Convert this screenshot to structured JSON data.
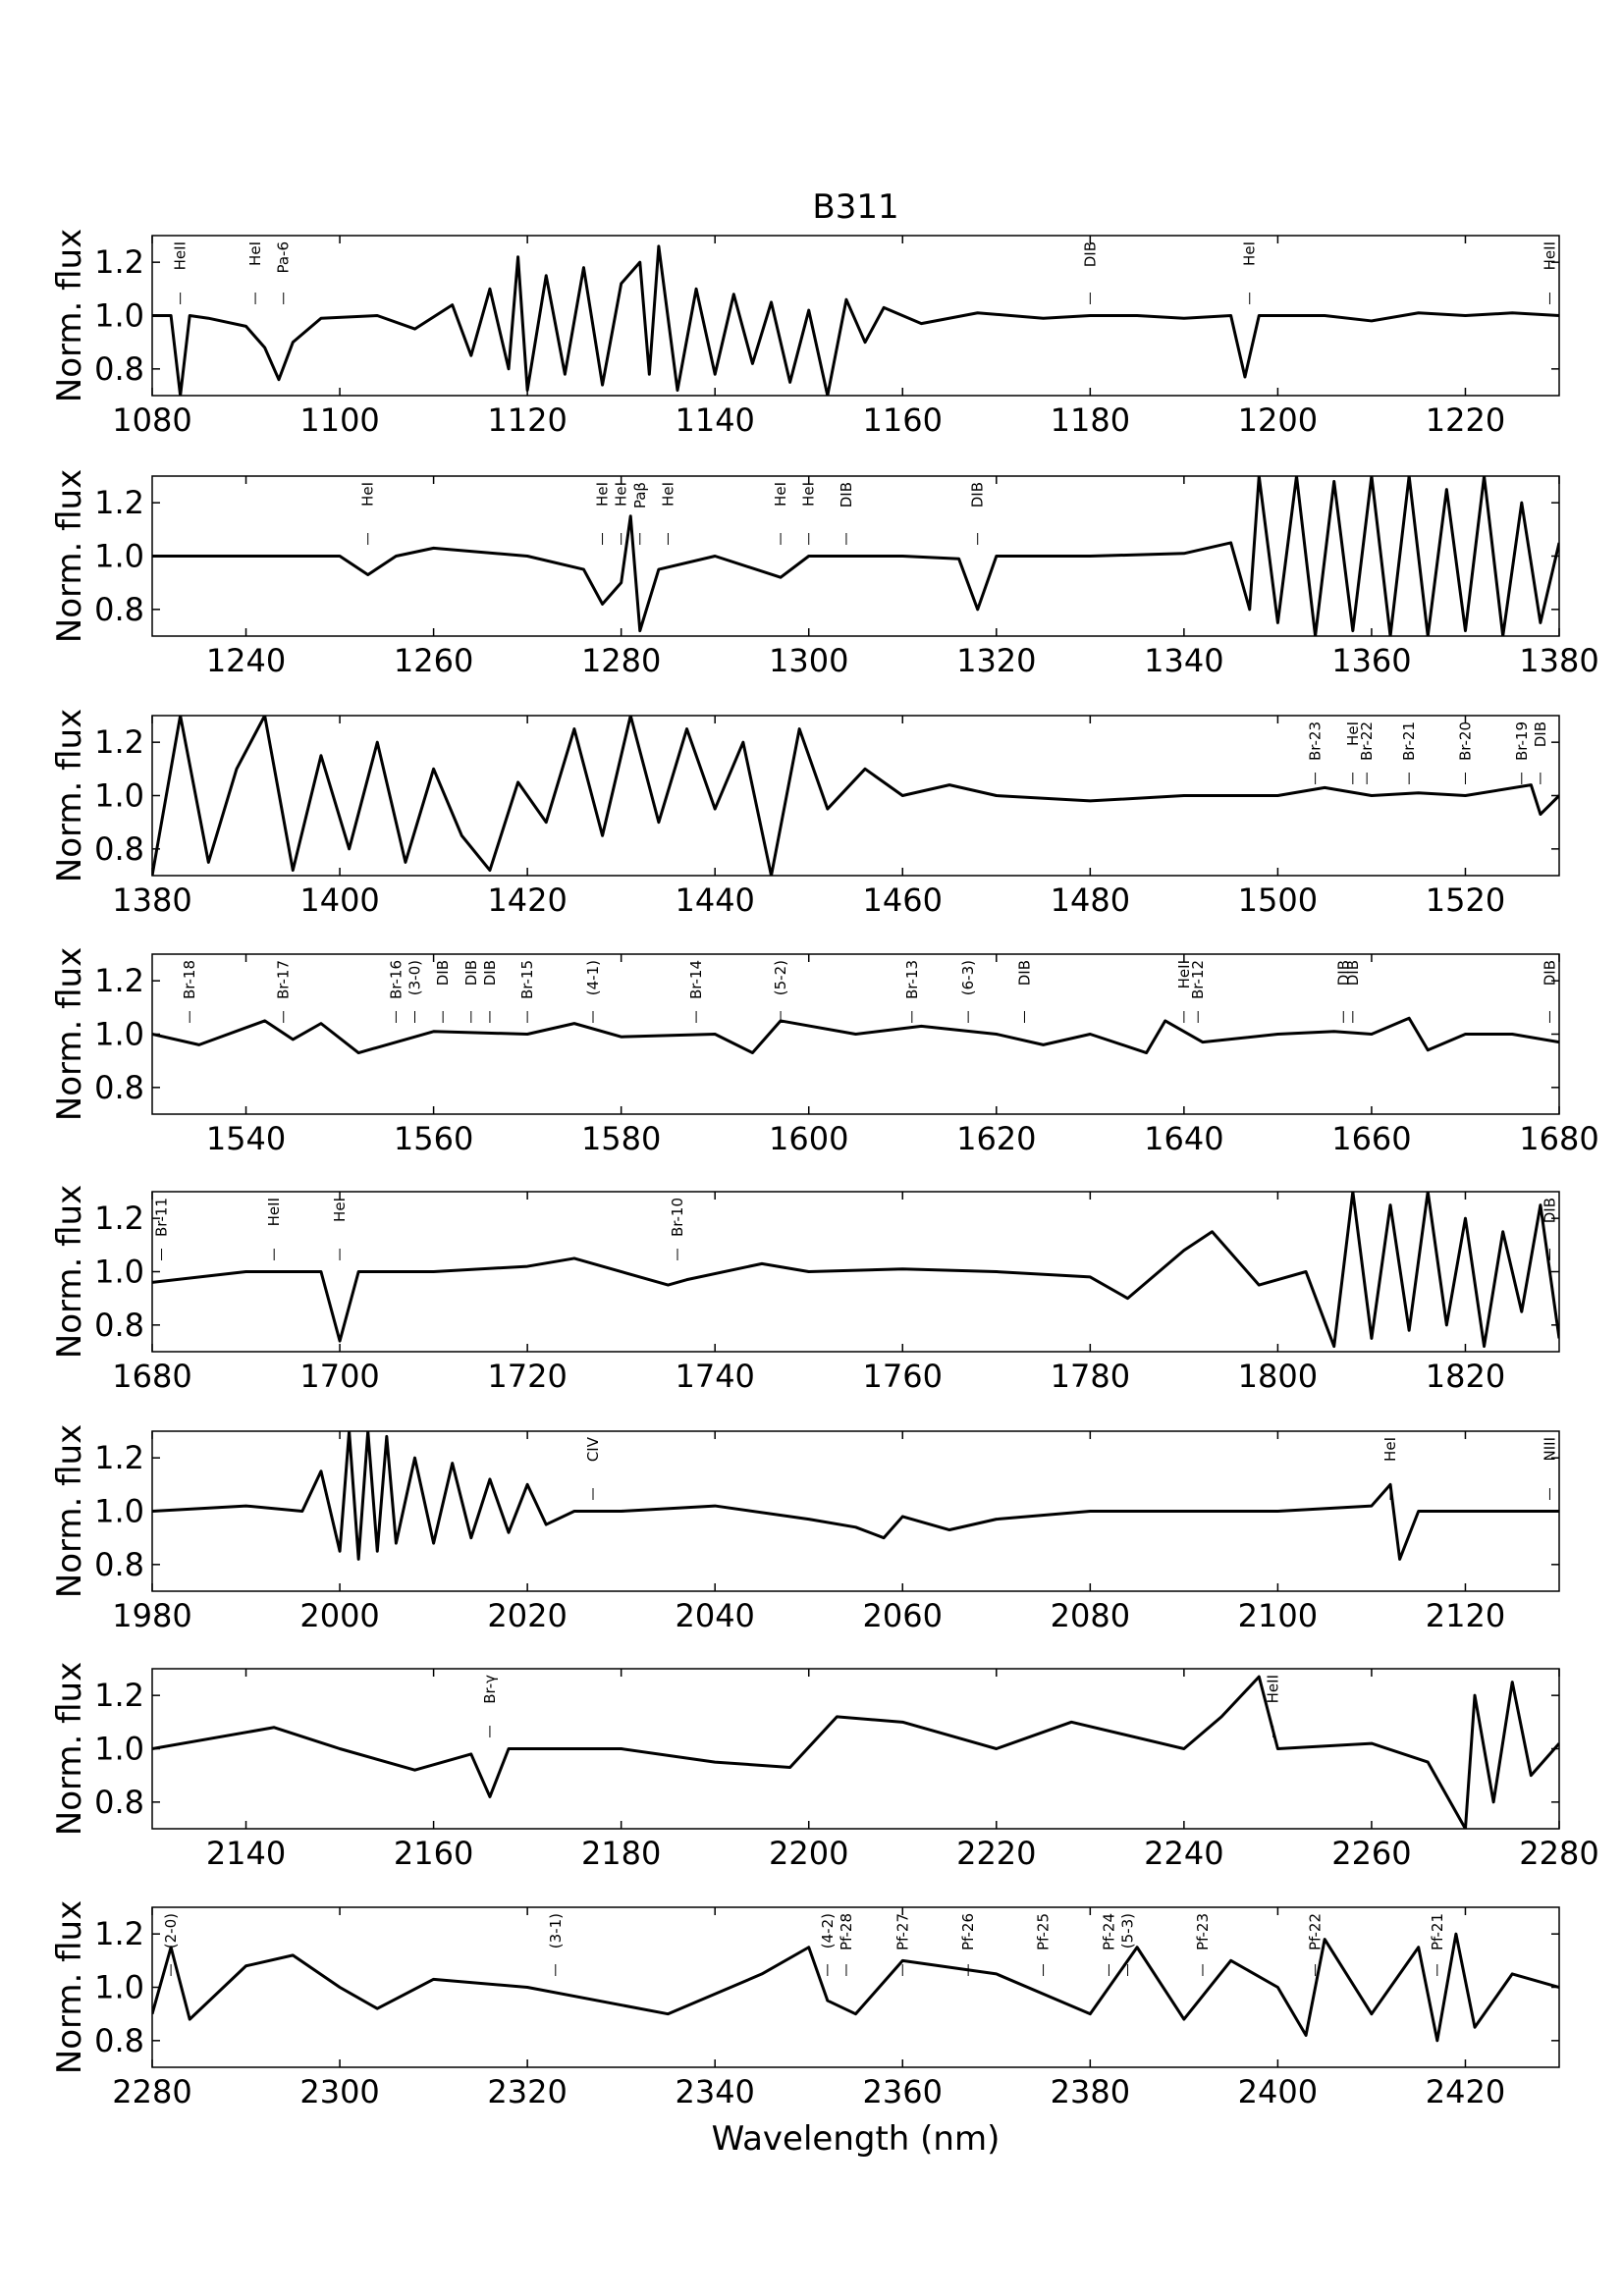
{
  "chart_data": [
    {
      "type": "line",
      "title": "B311",
      "ylabel": "Norm. flux",
      "color": "#000000",
      "xlim": [
        1080,
        1230
      ],
      "xticks": [
        1080,
        1100,
        1120,
        1140,
        1160,
        1180,
        1200,
        1220
      ],
      "ylim": [
        0.7,
        1.3
      ],
      "yticks": [
        0.8,
        {
          "value": 1,
          "label": "1.0"
        },
        1.2
      ],
      "x": [
        1080,
        1082,
        1083,
        1084,
        1086,
        1090,
        1092,
        1093.5,
        1095,
        1098,
        1104,
        1108,
        1112,
        1114,
        1116,
        1118,
        1119,
        1120,
        1122,
        1124,
        1126,
        1128,
        1130,
        1132,
        1133,
        1134,
        1136,
        1138,
        1140,
        1142,
        1144,
        1146,
        1148,
        1150,
        1152,
        1154,
        1156,
        1158,
        1162,
        1168,
        1175,
        1180,
        1185,
        1190,
        1195,
        1196.5,
        1198,
        1205,
        1210,
        1215,
        1220,
        1225,
        1230
      ],
      "values": [
        1.0,
        1.0,
        0.7,
        1.0,
        0.99,
        0.96,
        0.88,
        0.76,
        0.9,
        0.99,
        1.0,
        0.95,
        1.04,
        0.85,
        1.1,
        0.8,
        1.22,
        0.72,
        1.15,
        0.78,
        1.18,
        0.74,
        1.12,
        1.2,
        0.78,
        1.26,
        0.72,
        1.1,
        0.78,
        1.08,
        0.82,
        1.05,
        0.75,
        1.02,
        0.7,
        1.06,
        0.9,
        1.03,
        0.97,
        1.01,
        0.99,
        1.0,
        1.0,
        0.99,
        1.0,
        0.77,
        1.0,
        1.0,
        0.98,
        1.01,
        1.0,
        1.01,
        1.0
      ],
      "annotations": [
        {
          "x": 1083,
          "label": "HeII"
        },
        {
          "x": 1091,
          "label": "HeI"
        },
        {
          "x": 1094,
          "label": "Pa-6"
        },
        {
          "x": 1180,
          "label": "DIB"
        },
        {
          "x": 1197,
          "label": "HeI"
        },
        {
          "x": 1229,
          "label": "HeII"
        }
      ]
    },
    {
      "type": "line",
      "ylabel": "Norm. flux",
      "color": "#000000",
      "xlim": [
        1230,
        1380
      ],
      "xticks": [
        1240,
        1260,
        1280,
        1300,
        1320,
        1340,
        1360,
        1380
      ],
      "ylim": [
        0.7,
        1.3
      ],
      "yticks": [
        0.8,
        {
          "value": 1,
          "label": "1.0"
        },
        1.2
      ],
      "x": [
        1230,
        1240,
        1250,
        1253,
        1256,
        1260,
        1270,
        1276,
        1278,
        1280,
        1281,
        1282,
        1284,
        1290,
        1297,
        1300,
        1310,
        1316,
        1318,
        1320,
        1330,
        1340,
        1345,
        1347,
        1348,
        1350,
        1352,
        1354,
        1356,
        1358,
        1360,
        1362,
        1364,
        1366,
        1368,
        1370,
        1372,
        1374,
        1376,
        1378,
        1380
      ],
      "values": [
        1.0,
        1.0,
        1.0,
        0.93,
        1.0,
        1.03,
        1.0,
        0.95,
        0.82,
        0.9,
        1.15,
        0.72,
        0.95,
        1.0,
        0.92,
        1.0,
        1.0,
        0.99,
        0.8,
        1.0,
        1.0,
        1.01,
        1.05,
        0.8,
        1.3,
        0.75,
        1.3,
        0.7,
        1.28,
        0.72,
        1.3,
        0.7,
        1.3,
        0.7,
        1.25,
        0.72,
        1.3,
        0.7,
        1.2,
        0.75,
        1.05
      ],
      "annotations": [
        {
          "x": 1253,
          "label": "HeI"
        },
        {
          "x": 1278,
          "label": "HeI"
        },
        {
          "x": 1280,
          "label": "HeI"
        },
        {
          "x": 1282,
          "label": "Paβ"
        },
        {
          "x": 1285,
          "label": "HeI"
        },
        {
          "x": 1297,
          "label": "HeI"
        },
        {
          "x": 1300,
          "label": "HeI"
        },
        {
          "x": 1304,
          "label": "DIB"
        },
        {
          "x": 1318,
          "label": "DIB"
        }
      ]
    },
    {
      "type": "line",
      "ylabel": "Norm. flux",
      "color": "#000000",
      "xlim": [
        1380,
        1530
      ],
      "xticks": [
        1380,
        1400,
        1420,
        1440,
        1460,
        1480,
        1500,
        1520
      ],
      "ylim": [
        0.7,
        1.3
      ],
      "yticks": [
        0.8,
        {
          "value": 1,
          "label": "1.0"
        },
        1.2
      ],
      "x": [
        1380,
        1383,
        1386,
        1389,
        1392,
        1395,
        1398,
        1401,
        1404,
        1407,
        1410,
        1413,
        1416,
        1419,
        1422,
        1425,
        1428,
        1431,
        1434,
        1437,
        1440,
        1443,
        1446,
        1449,
        1452,
        1456,
        1460,
        1465,
        1470,
        1480,
        1490,
        1500,
        1505,
        1510,
        1515,
        1520,
        1527,
        1528,
        1530
      ],
      "values": [
        0.7,
        1.3,
        0.75,
        1.1,
        1.3,
        0.72,
        1.15,
        0.8,
        1.2,
        0.75,
        1.1,
        0.85,
        0.72,
        1.05,
        0.9,
        1.25,
        0.85,
        1.3,
        0.9,
        1.25,
        0.95,
        1.2,
        0.7,
        1.25,
        0.95,
        1.1,
        1.0,
        1.04,
        1.0,
        0.98,
        1.0,
        1.0,
        1.03,
        1.0,
        1.01,
        1.0,
        1.04,
        0.93,
        1.0
      ],
      "annotations": [
        {
          "x": 1504,
          "label": "Br-23"
        },
        {
          "x": 1508,
          "label": "HeI"
        },
        {
          "x": 1509.5,
          "label": "Br-22"
        },
        {
          "x": 1514,
          "label": "Br-21"
        },
        {
          "x": 1520,
          "label": "Br-20"
        },
        {
          "x": 1526,
          "label": "Br-19"
        },
        {
          "x": 1528,
          "label": "DIB"
        }
      ]
    },
    {
      "type": "line",
      "ylabel": "Norm. flux",
      "color": "#000000",
      "xlim": [
        1530,
        1680
      ],
      "xticks": [
        1540,
        1560,
        1580,
        1600,
        1620,
        1640,
        1660,
        1680
      ],
      "ylim": [
        0.7,
        1.3
      ],
      "yticks": [
        0.8,
        {
          "value": 1,
          "label": "1.0"
        },
        1.2
      ],
      "x": [
        1530,
        1535,
        1542,
        1545,
        1548,
        1552,
        1560,
        1570,
        1575,
        1580,
        1590,
        1594,
        1597,
        1605,
        1612,
        1620,
        1625,
        1630,
        1636,
        1638,
        1642,
        1650,
        1656,
        1660,
        1664,
        1666,
        1670,
        1675,
        1680
      ],
      "values": [
        1.0,
        0.96,
        1.05,
        0.98,
        1.04,
        0.93,
        1.01,
        1.0,
        1.04,
        0.99,
        1.0,
        0.93,
        1.05,
        1.0,
        1.03,
        1.0,
        0.96,
        1.0,
        0.93,
        1.05,
        0.97,
        1.0,
        1.01,
        1.0,
        1.06,
        0.94,
        1.0,
        1.0,
        0.97
      ],
      "annotations": [
        {
          "x": 1534,
          "label": "Br-18"
        },
        {
          "x": 1544,
          "label": "Br-17"
        },
        {
          "x": 1556,
          "label": "Br-16"
        },
        {
          "x": 1558,
          "label": "(3-0)"
        },
        {
          "x": 1561,
          "label": "DIB"
        },
        {
          "x": 1564,
          "label": "DIB"
        },
        {
          "x": 1566,
          "label": "DIB"
        },
        {
          "x": 1570,
          "label": "Br-15"
        },
        {
          "x": 1577,
          "label": "(4-1)"
        },
        {
          "x": 1588,
          "label": "Br-14"
        },
        {
          "x": 1597,
          "label": "(5-2)"
        },
        {
          "x": 1611,
          "label": "Br-13"
        },
        {
          "x": 1617,
          "label": "(6-3)"
        },
        {
          "x": 1623,
          "label": "DIB"
        },
        {
          "x": 1640,
          "label": "HeII"
        },
        {
          "x": 1641.5,
          "label": "Br-12"
        },
        {
          "x": 1657,
          "label": "DIB"
        },
        {
          "x": 1658,
          "label": "DIB"
        },
        {
          "x": 1679,
          "label": "DIB"
        }
      ]
    },
    {
      "type": "line",
      "ylabel": "Norm. flux",
      "color": "#000000",
      "xlim": [
        1680,
        1830
      ],
      "xticks": [
        1680,
        1700,
        1720,
        1740,
        1760,
        1780,
        1800,
        1820
      ],
      "ylim": [
        0.7,
        1.3
      ],
      "yticks": [
        0.8,
        {
          "value": 1,
          "label": "1.0"
        },
        1.2
      ],
      "x": [
        1680,
        1690,
        1698,
        1700,
        1702,
        1710,
        1720,
        1725,
        1735,
        1737,
        1745,
        1750,
        1760,
        1770,
        1780,
        1784,
        1790,
        1793,
        1798,
        1803,
        1806,
        1808,
        1810,
        1812,
        1814,
        1816,
        1818,
        1820,
        1822,
        1824,
        1826,
        1828,
        1830
      ],
      "values": [
        0.96,
        1.0,
        1.0,
        0.74,
        1.0,
        1.0,
        1.02,
        1.05,
        0.95,
        0.97,
        1.03,
        1.0,
        1.01,
        1.0,
        0.98,
        0.9,
        1.08,
        1.15,
        0.95,
        1.0,
        0.72,
        1.3,
        0.75,
        1.25,
        0.78,
        1.3,
        0.8,
        1.2,
        0.72,
        1.15,
        0.85,
        1.25,
        0.75
      ],
      "annotations": [
        {
          "x": 1681,
          "label": "Br-11"
        },
        {
          "x": 1693,
          "label": "HeII"
        },
        {
          "x": 1700,
          "label": "HeI"
        },
        {
          "x": 1736,
          "label": "Br-10"
        },
        {
          "x": 1829,
          "label": "DIB"
        }
      ]
    },
    {
      "type": "line",
      "ylabel": "Norm. flux",
      "color": "#000000",
      "xlim": [
        1980,
        2130
      ],
      "xticks": [
        1980,
        2000,
        2020,
        2040,
        2060,
        2080,
        2100,
        2120
      ],
      "ylim": [
        0.7,
        1.3
      ],
      "yticks": [
        0.8,
        {
          "value": 1,
          "label": "1.0"
        },
        1.2
      ],
      "x": [
        1980,
        1990,
        1996,
        1998,
        2000,
        2001,
        2002,
        2003,
        2004,
        2005,
        2006,
        2008,
        2010,
        2012,
        2014,
        2016,
        2018,
        2020,
        2022,
        2025,
        2030,
        2040,
        2050,
        2055,
        2058,
        2060,
        2065,
        2070,
        2080,
        2090,
        2100,
        2110,
        2112,
        2113,
        2115,
        2120,
        2130
      ],
      "values": [
        1.0,
        1.02,
        1.0,
        1.15,
        0.85,
        1.3,
        0.82,
        1.3,
        0.85,
        1.28,
        0.88,
        1.2,
        0.88,
        1.18,
        0.9,
        1.12,
        0.92,
        1.1,
        0.95,
        1.0,
        1.0,
        1.02,
        0.97,
        0.94,
        0.9,
        0.98,
        0.93,
        0.97,
        1.0,
        1.0,
        1.0,
        1.02,
        1.1,
        0.82,
        1.0,
        1.0,
        1.0
      ],
      "annotations": [
        {
          "x": 2027,
          "label": "CIV"
        },
        {
          "x": 2112,
          "label": "HeI"
        },
        {
          "x": 2129,
          "label": "NIII"
        }
      ]
    },
    {
      "type": "line",
      "ylabel": "Norm. flux",
      "color": "#000000",
      "xlim": [
        2130,
        2280
      ],
      "xticks": [
        2140,
        2160,
        2180,
        2200,
        2220,
        2240,
        2260,
        2280
      ],
      "ylim": [
        0.7,
        1.3
      ],
      "yticks": [
        0.8,
        {
          "value": 1,
          "label": "1.0"
        },
        1.2
      ],
      "x": [
        2130,
        2143,
        2150,
        2158,
        2164,
        2166,
        2168,
        2180,
        2190,
        2198,
        2203,
        2210,
        2220,
        2228,
        2240,
        2244,
        2248,
        2250,
        2260,
        2266,
        2270,
        2271,
        2273,
        2275,
        2277,
        2280
      ],
      "values": [
        1.0,
        1.08,
        1.0,
        0.92,
        0.98,
        0.82,
        1.0,
        1.0,
        0.95,
        0.93,
        1.12,
        1.1,
        1.0,
        1.1,
        1.0,
        1.12,
        1.27,
        1.0,
        1.02,
        0.95,
        0.7,
        1.2,
        0.8,
        1.25,
        0.9,
        1.02
      ],
      "annotations": [
        {
          "x": 2166,
          "label": "Br-γ"
        },
        {
          "x": 2249.5,
          "label": "HeII"
        }
      ]
    },
    {
      "type": "line",
      "ylabel": "Norm. flux",
      "xlabel": "Wavelength (nm)",
      "color": "#000000",
      "xlim": [
        2280,
        2430
      ],
      "xticks": [
        2280,
        2300,
        2320,
        2340,
        2360,
        2380,
        2400,
        2420
      ],
      "ylim": [
        0.7,
        1.3
      ],
      "yticks": [
        0.8,
        {
          "value": 1,
          "label": "1.0"
        },
        1.2
      ],
      "x": [
        2280,
        2282,
        2284,
        2290,
        2295,
        2300,
        2304,
        2310,
        2320,
        2335,
        2345,
        2350,
        2352,
        2355,
        2360,
        2370,
        2380,
        2385,
        2390,
        2395,
        2400,
        2403,
        2405,
        2410,
        2415,
        2417,
        2419,
        2421,
        2425,
        2430
      ],
      "values": [
        0.9,
        1.15,
        0.88,
        1.08,
        1.12,
        1.0,
        0.92,
        1.03,
        1.0,
        0.9,
        1.05,
        1.15,
        0.95,
        0.9,
        1.1,
        1.05,
        0.9,
        1.15,
        0.88,
        1.1,
        1.0,
        0.82,
        1.18,
        0.9,
        1.15,
        0.8,
        1.2,
        0.85,
        1.05,
        1.0
      ],
      "annotations": [
        {
          "x": 2282,
          "label": "(2-0)"
        },
        {
          "x": 2323,
          "label": "(3-1)"
        },
        {
          "x": 2352,
          "label": "(4-2)"
        },
        {
          "x": 2354,
          "label": "Pf-28"
        },
        {
          "x": 2360,
          "label": "Pf-27"
        },
        {
          "x": 2367,
          "label": "Pf-26"
        },
        {
          "x": 2375,
          "label": "Pf-25"
        },
        {
          "x": 2382,
          "label": "Pf-24"
        },
        {
          "x": 2384,
          "label": "(5-3)"
        },
        {
          "x": 2392,
          "label": "Pf-23"
        },
        {
          "x": 2404,
          "label": "Pf-22"
        },
        {
          "x": 2417,
          "label": "Pf-21"
        }
      ]
    }
  ]
}
